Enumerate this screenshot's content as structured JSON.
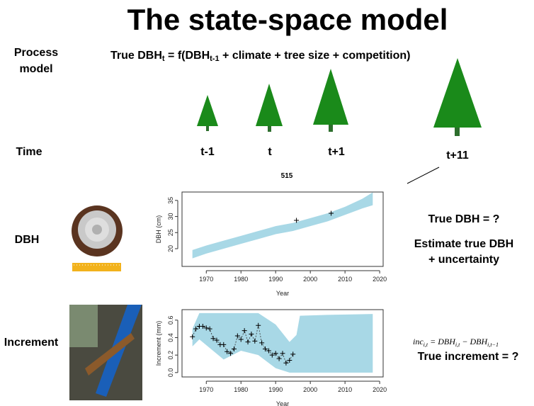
{
  "slide": {
    "title": "The state-space model",
    "process_label": [
      "Process",
      "model"
    ],
    "formula": {
      "lhs": "True DBH",
      "lhs_sub": "t",
      "mid": " = f(DBH",
      "mid_sub": "t-1",
      "rest": " + climate + tree size + competition)"
    },
    "time_label": "Time",
    "time_steps": [
      "t-1",
      "t",
      "t+1",
      "t+11"
    ],
    "tree_id": "515",
    "dbh_label": "DBH",
    "increment_label": "Increment",
    "dbh_question": "True DBH = ?",
    "estimate": [
      "Estimate true DBH",
      "+ uncertainty"
    ],
    "inc_formula": {
      "a": "inc",
      "a_sub": "i,t",
      "b": " = DBH",
      "b_sub": "i,t",
      "c": " − DBH",
      "c_sub": "i,t−1"
    },
    "increment_question": "True increment = ?"
  },
  "chart_data": [
    {
      "type": "band",
      "ylabel": "DBH (cm)",
      "xlabel": "Year",
      "color": "#a8d8e6",
      "xlim": [
        1963,
        2021
      ],
      "xticks": [
        1970,
        1980,
        1990,
        2000,
        2010,
        2020
      ],
      "ylim": [
        14.5,
        37.6
      ],
      "yticks": [
        20,
        25,
        30,
        35
      ],
      "band": {
        "x": [
          1966,
          1970,
          1975,
          1980,
          1985,
          1990,
          1995,
          2000,
          2005,
          2010,
          2015,
          2018
        ],
        "upper": [
          19.6,
          21,
          22.5,
          24,
          25.5,
          27,
          28,
          29.5,
          31,
          33,
          35.5,
          37.5
        ],
        "lower": [
          17,
          18.5,
          20,
          21.5,
          23,
          24.5,
          25.5,
          27,
          28.5,
          30.5,
          32.5,
          33.5
        ]
      },
      "points": {
        "x": [
          1996,
          2006
        ],
        "values": [
          28.8,
          31
        ]
      },
      "connect": false
    },
    {
      "type": "band",
      "ylabel": "Increment (mm)",
      "xlabel": "Year",
      "color": "#a8d8e6",
      "xlim": [
        1963,
        2021
      ],
      "xticks": [
        1970,
        1980,
        1990,
        2000,
        2010,
        2020
      ],
      "ylim": [
        -0.05,
        0.72
      ],
      "yticks": [
        {
          "value": 0,
          "label": "0.0"
        },
        0.2,
        0.4,
        0.6
      ],
      "band": {
        "x": [
          1966,
          1968,
          1975,
          1980,
          1985,
          1990,
          1994,
          1996,
          1997,
          2005,
          2018
        ],
        "upper": [
          0.5,
          0.68,
          0.68,
          0.68,
          0.68,
          0.55,
          0.35,
          0.43,
          0.65,
          0.66,
          0.67
        ],
        "lower": [
          0.3,
          0.38,
          0.15,
          0.25,
          0.2,
          0.05,
          0,
          0,
          0,
          0,
          0
        ]
      },
      "points": {
        "x": [
          1966,
          1967,
          1968,
          1969,
          1970,
          1971,
          1972,
          1973,
          1974,
          1975,
          1976,
          1977,
          1978,
          1979,
          1980,
          1981,
          1982,
          1983,
          1984,
          1985,
          1986,
          1987,
          1988,
          1989,
          1990,
          1991,
          1992,
          1993,
          1994,
          1995
        ],
        "values": [
          0.41,
          0.5,
          0.53,
          0.53,
          0.51,
          0.5,
          0.39,
          0.37,
          0.32,
          0.32,
          0.24,
          0.22,
          0.27,
          0.42,
          0.38,
          0.48,
          0.35,
          0.44,
          0.36,
          0.54,
          0.34,
          0.27,
          0.25,
          0.2,
          0.22,
          0.16,
          0.22,
          0.11,
          0.14,
          0.21
        ]
      },
      "connect": true
    }
  ]
}
